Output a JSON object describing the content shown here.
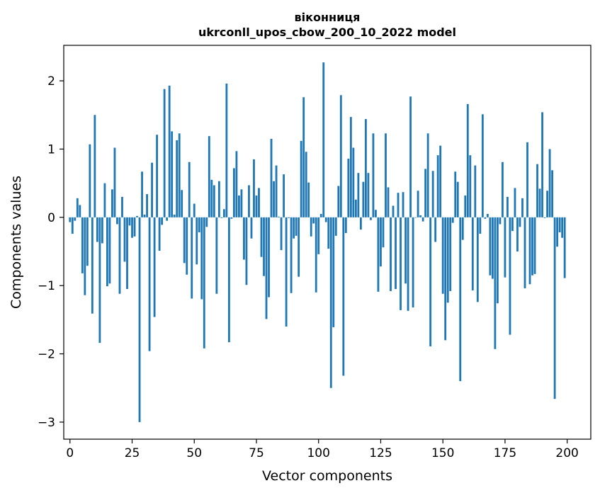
{
  "chart_data": {
    "type": "bar",
    "title": "віконниця",
    "subtitle": "ukrconll_upos_cbow_200_10_2022 model",
    "xlabel": "Vector components",
    "ylabel": "Components values",
    "xlim": [
      -2.5,
      209.5
    ],
    "ylim": [
      -3.25,
      2.52
    ],
    "xticks": [
      0,
      25,
      50,
      75,
      100,
      125,
      150,
      175,
      200
    ],
    "yticks": [
      -3,
      -2,
      -1,
      0,
      1,
      2
    ],
    "ytick_labels": [
      "−3",
      "−2",
      "−1",
      "0",
      "1",
      "2"
    ],
    "grid": false,
    "bar_color": "#1f77b4",
    "x": [
      0,
      1,
      2,
      3,
      4,
      5,
      6,
      7,
      8,
      9,
      10,
      11,
      12,
      13,
      14,
      15,
      16,
      17,
      18,
      19,
      20,
      21,
      22,
      23,
      24,
      25,
      26,
      27,
      28,
      29,
      30,
      31,
      32,
      33,
      34,
      35,
      36,
      37,
      38,
      39,
      40,
      41,
      42,
      43,
      44,
      45,
      46,
      47,
      48,
      49,
      50,
      51,
      52,
      53,
      54,
      55,
      56,
      57,
      58,
      59,
      60,
      61,
      62,
      63,
      64,
      65,
      66,
      67,
      68,
      69,
      70,
      71,
      72,
      73,
      74,
      75,
      76,
      77,
      78,
      79,
      80,
      81,
      82,
      83,
      84,
      85,
      86,
      87,
      88,
      89,
      90,
      91,
      92,
      93,
      94,
      95,
      96,
      97,
      98,
      99,
      100,
      101,
      102,
      103,
      104,
      105,
      106,
      107,
      108,
      109,
      110,
      111,
      112,
      113,
      114,
      115,
      116,
      117,
      118,
      119,
      120,
      121,
      122,
      123,
      124,
      125,
      126,
      127,
      128,
      129,
      130,
      131,
      132,
      133,
      134,
      135,
      136,
      137,
      138,
      139,
      140,
      141,
      142,
      143,
      144,
      145,
      146,
      147,
      148,
      149,
      150,
      151,
      152,
      153,
      154,
      155,
      156,
      157,
      158,
      159,
      160,
      161,
      162,
      163,
      164,
      165,
      166,
      167,
      168,
      169,
      170,
      171,
      172,
      173,
      174,
      175,
      176,
      177,
      178,
      179,
      180,
      181,
      182,
      183,
      184,
      185,
      186,
      187,
      188,
      189,
      190,
      191,
      192,
      193,
      194,
      195,
      196,
      197,
      198,
      199
    ],
    "values": [
      -0.07,
      -0.24,
      -0.05,
      0.28,
      0.18,
      -0.82,
      -1.14,
      -0.71,
      1.07,
      -1.41,
      1.5,
      -0.36,
      -1.84,
      -0.38,
      0.5,
      -1.01,
      -0.97,
      0.41,
      1.02,
      -0.1,
      -1.12,
      0.3,
      -0.65,
      -1.05,
      -0.12,
      -0.3,
      -0.28,
      0.02,
      -3.0,
      0.67,
      0.04,
      0.34,
      -1.96,
      0.8,
      -1.46,
      1.21,
      -0.49,
      -0.11,
      1.88,
      -0.05,
      1.93,
      1.26,
      0.04,
      1.13,
      1.23,
      0.4,
      -0.67,
      -0.84,
      0.81,
      -1.19,
      0.2,
      -0.69,
      -0.22,
      -1.2,
      -1.92,
      -0.14,
      1.19,
      0.55,
      0.47,
      -1.12,
      0.53,
      -0.01,
      0.12,
      1.96,
      -1.83,
      -0.02,
      0.72,
      0.97,
      0.32,
      0.41,
      -0.62,
      -0.99,
      0.47,
      -0.31,
      0.85,
      0.32,
      0.43,
      -0.58,
      -0.86,
      -1.49,
      -1.17,
      1.15,
      0.53,
      0.76,
      0.01,
      -0.48,
      0.63,
      -1.6,
      -0.01,
      -1.11,
      -0.31,
      -0.27,
      -0.87,
      1.12,
      1.76,
      0.96,
      0.51,
      -0.28,
      -0.09,
      -1.1,
      -0.54,
      0.05,
      2.27,
      -0.07,
      -0.46,
      -2.5,
      -1.61,
      -0.27,
      0.46,
      1.79,
      -2.32,
      -0.23,
      0.86,
      1.47,
      1.02,
      0.26,
      0.65,
      -0.18,
      0.52,
      1.44,
      0.65,
      -0.04,
      1.23,
      0.11,
      -1.09,
      -0.72,
      -0.44,
      1.23,
      0.44,
      -1.08,
      0.17,
      -1.05,
      0.36,
      -1.36,
      0.37,
      -0.97,
      -1.37,
      1.77,
      -1.32,
      0.0,
      0.39,
      0.03,
      -0.06,
      0.71,
      1.23,
      -1.89,
      0.68,
      -0.36,
      0.91,
      1.05,
      -1.12,
      -1.8,
      -1.25,
      -1.08,
      -0.08,
      0.67,
      0.52,
      -2.4,
      -0.33,
      0.32,
      1.66,
      0.91,
      -1.07,
      0.76,
      -1.24,
      -0.24,
      1.51,
      -0.02,
      0.05,
      -0.85,
      -0.9,
      -1.93,
      -1.26,
      -0.1,
      0.81,
      -0.88,
      0.3,
      -1.72,
      -0.2,
      0.43,
      -0.5,
      -0.14,
      0.28,
      -1.04,
      1.1,
      -0.98,
      -0.85,
      -0.83,
      0.78,
      0.42,
      1.54,
      -0.01,
      0.39,
      1.0,
      0.69,
      -2.66,
      -0.43,
      -0.22,
      -0.3,
      -0.89
    ]
  }
}
